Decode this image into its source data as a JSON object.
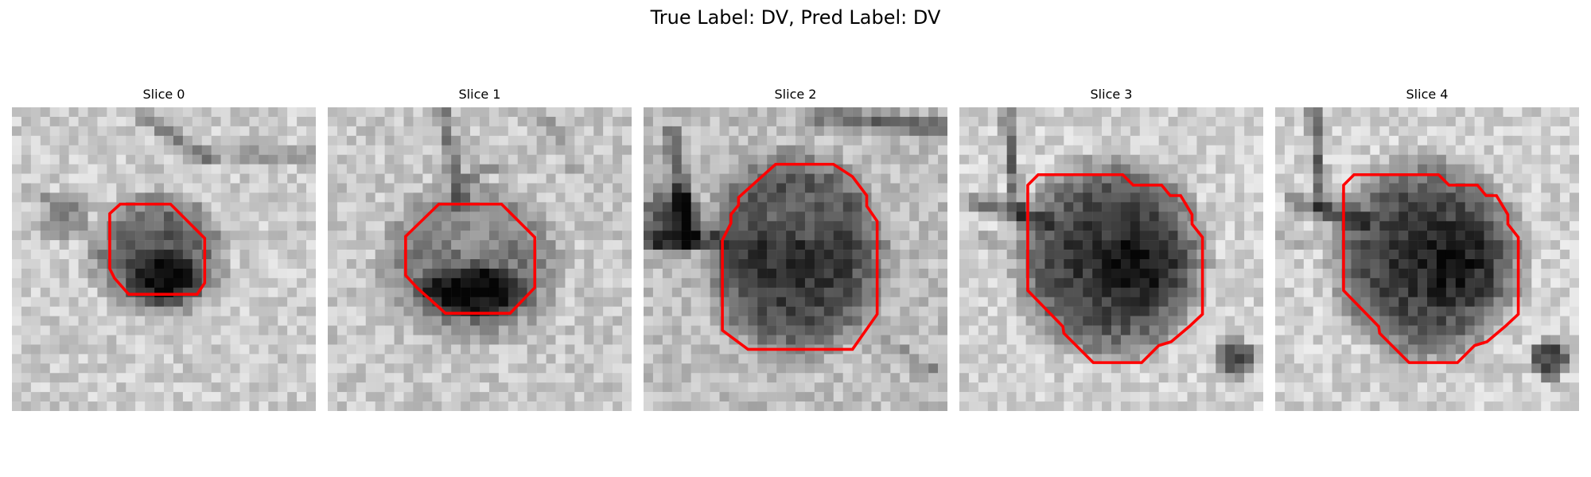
{
  "figure": {
    "title": "True Label: DV, Pred Label: DV"
  },
  "panels": [
    {
      "title": "Slice 0",
      "contour_color": "#ff0000"
    },
    {
      "title": "Slice 1",
      "contour_color": "#ff0000"
    },
    {
      "title": "Slice 2",
      "contour_color": "#ff0000"
    },
    {
      "title": "Slice 3",
      "contour_color": "#ff0000"
    },
    {
      "title": "Slice 4",
      "contour_color": "#ff0000"
    }
  ],
  "colors": {
    "contour": "#ff0000",
    "background": "#ffffff"
  }
}
